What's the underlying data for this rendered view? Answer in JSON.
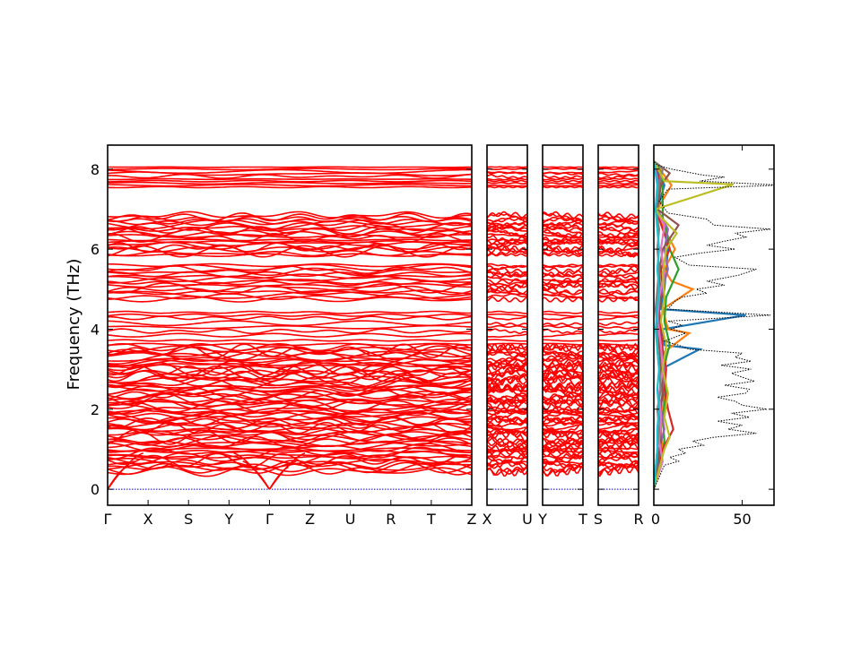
{
  "chart_data": {
    "type": "line",
    "ylabel": "Frequency (THz)",
    "ylim": [
      -0.4,
      8.6
    ],
    "yticks": [
      0,
      2,
      4,
      6,
      8
    ],
    "band_color": "#ff0000",
    "zero_line_color": "#0000cc",
    "panels": [
      {
        "kind": "band",
        "segments": [
          {
            "from": "Γ",
            "to": "X"
          },
          {
            "from": "X",
            "to": "S"
          },
          {
            "from": "S",
            "to": "Y"
          },
          {
            "from": "Y",
            "to": "Γ"
          },
          {
            "from": "Γ",
            "to": "Z"
          },
          {
            "from": "Z",
            "to": "U"
          },
          {
            "from": "U",
            "to": "R"
          },
          {
            "from": "R",
            "to": "T"
          },
          {
            "from": "T",
            "to": "Z"
          }
        ],
        "tick_labels": [
          "Γ",
          "X",
          "S",
          "Y",
          "Γ",
          "Z",
          "U",
          "R",
          "T",
          "Z"
        ]
      },
      {
        "kind": "band",
        "segments": [
          {
            "from": "X",
            "to": "U"
          }
        ],
        "tick_labels": [
          "X",
          "U"
        ]
      },
      {
        "kind": "band",
        "segments": [
          {
            "from": "Y",
            "to": "T"
          }
        ],
        "tick_labels": [
          "Y",
          "T"
        ]
      },
      {
        "kind": "band",
        "segments": [
          {
            "from": "S",
            "to": "R"
          }
        ],
        "tick_labels": [
          "S",
          "R"
        ]
      },
      {
        "kind": "dos",
        "xlim": [
          0,
          68
        ],
        "xticks": [
          0,
          50
        ],
        "tick_labels": [
          "0",
          "50"
        ],
        "total_dos_color": "#000000",
        "pdos_colors": [
          "#1f77b4",
          "#ff7f0e",
          "#2ca02c",
          "#d62728",
          "#9467bd",
          "#8c564b",
          "#e377c2",
          "#7f7f7f",
          "#bcbd22",
          "#17becf"
        ],
        "total_dos": [
          [
            0.0,
            0
          ],
          [
            0.3,
            3
          ],
          [
            0.6,
            6
          ],
          [
            0.7,
            14
          ],
          [
            0.8,
            9
          ],
          [
            0.9,
            18
          ],
          [
            1.0,
            14
          ],
          [
            1.1,
            28
          ],
          [
            1.2,
            22
          ],
          [
            1.3,
            34
          ],
          [
            1.4,
            58
          ],
          [
            1.5,
            42
          ],
          [
            1.6,
            50
          ],
          [
            1.7,
            36
          ],
          [
            1.8,
            54
          ],
          [
            1.9,
            44
          ],
          [
            2.0,
            64
          ],
          [
            2.1,
            50
          ],
          [
            2.2,
            46
          ],
          [
            2.3,
            36
          ],
          [
            2.4,
            52
          ],
          [
            2.5,
            54
          ],
          [
            2.6,
            40
          ],
          [
            2.7,
            57
          ],
          [
            2.8,
            50
          ],
          [
            2.9,
            44
          ],
          [
            3.0,
            55
          ],
          [
            3.1,
            38
          ],
          [
            3.2,
            55
          ],
          [
            3.3,
            46
          ],
          [
            3.4,
            50
          ],
          [
            3.5,
            20
          ],
          [
            3.6,
            14
          ],
          [
            3.7,
            6
          ],
          [
            3.8,
            12
          ],
          [
            3.9,
            18
          ],
          [
            4.0,
            10
          ],
          [
            4.1,
            16
          ],
          [
            4.2,
            8
          ],
          [
            4.35,
            66
          ],
          [
            4.5,
            8
          ],
          [
            4.7,
            12
          ],
          [
            4.8,
            16
          ],
          [
            4.9,
            30
          ],
          [
            5.0,
            24
          ],
          [
            5.1,
            40
          ],
          [
            5.2,
            30
          ],
          [
            5.35,
            48
          ],
          [
            5.5,
            58
          ],
          [
            5.6,
            20
          ],
          [
            5.8,
            12
          ],
          [
            5.9,
            26
          ],
          [
            6.0,
            46
          ],
          [
            6.1,
            30
          ],
          [
            6.2,
            40
          ],
          [
            6.3,
            52
          ],
          [
            6.4,
            46
          ],
          [
            6.5,
            66
          ],
          [
            6.6,
            34
          ],
          [
            6.75,
            30
          ],
          [
            6.9,
            8
          ],
          [
            7.2,
            3
          ],
          [
            7.5,
            8
          ],
          [
            7.6,
            72
          ],
          [
            7.7,
            26
          ],
          [
            7.8,
            40
          ],
          [
            7.85,
            28
          ],
          [
            8.0,
            10
          ],
          [
            8.1,
            2
          ],
          [
            8.2,
            0
          ]
        ],
        "pdos": [
          {
            "points": [
              [
                0.0,
                0
              ],
              [
                0.5,
                2
              ],
              [
                1.0,
                4
              ],
              [
                1.5,
                3
              ],
              [
                2.0,
                6
              ],
              [
                2.5,
                5
              ],
              [
                3.0,
                4
              ],
              [
                3.5,
                26
              ],
              [
                3.6,
                6
              ],
              [
                4.0,
                5
              ],
              [
                4.35,
                52
              ],
              [
                4.5,
                4
              ],
              [
                5.0,
                6
              ],
              [
                5.5,
                7
              ],
              [
                6.0,
                8
              ],
              [
                6.5,
                6
              ],
              [
                7.0,
                2
              ],
              [
                7.6,
                6
              ],
              [
                8.0,
                2
              ],
              [
                8.2,
                0
              ]
            ]
          },
          {
            "points": [
              [
                0.0,
                0
              ],
              [
                0.5,
                3
              ],
              [
                1.0,
                5
              ],
              [
                1.5,
                4
              ],
              [
                2.0,
                5
              ],
              [
                2.5,
                7
              ],
              [
                3.0,
                6
              ],
              [
                3.5,
                8
              ],
              [
                3.9,
                20
              ],
              [
                4.0,
                8
              ],
              [
                4.5,
                5
              ],
              [
                5.0,
                22
              ],
              [
                5.2,
                10
              ],
              [
                5.5,
                6
              ],
              [
                6.0,
                12
              ],
              [
                6.5,
                6
              ],
              [
                7.0,
                2
              ],
              [
                7.6,
                10
              ],
              [
                8.2,
                0
              ]
            ]
          },
          {
            "points": [
              [
                0.0,
                0
              ],
              [
                0.6,
                4
              ],
              [
                1.2,
                6
              ],
              [
                1.8,
                5
              ],
              [
                2.4,
                7
              ],
              [
                3.0,
                5
              ],
              [
                3.6,
                9
              ],
              [
                4.2,
                6
              ],
              [
                4.8,
                7
              ],
              [
                5.5,
                14
              ],
              [
                6.0,
                9
              ],
              [
                6.5,
                7
              ],
              [
                6.8,
                5
              ],
              [
                7.6,
                5
              ],
              [
                8.0,
                3
              ],
              [
                8.2,
                0
              ]
            ]
          },
          {
            "points": [
              [
                0.0,
                0
              ],
              [
                0.5,
                3
              ],
              [
                1.0,
                5
              ],
              [
                1.5,
                11
              ],
              [
                2.0,
                8
              ],
              [
                2.5,
                6
              ],
              [
                3.0,
                7
              ],
              [
                3.5,
                5
              ],
              [
                4.0,
                4
              ],
              [
                4.5,
                3
              ],
              [
                5.0,
                5
              ],
              [
                5.5,
                4
              ],
              [
                6.0,
                9
              ],
              [
                6.5,
                5
              ],
              [
                7.0,
                1
              ],
              [
                7.6,
                4
              ],
              [
                8.2,
                0
              ]
            ]
          },
          {
            "points": [
              [
                0.0,
                0
              ],
              [
                0.5,
                2
              ],
              [
                1.0,
                3
              ],
              [
                1.5,
                6
              ],
              [
                2.0,
                4
              ],
              [
                2.5,
                5
              ],
              [
                3.0,
                6
              ],
              [
                3.5,
                4
              ],
              [
                4.0,
                3
              ],
              [
                4.5,
                2
              ],
              [
                5.0,
                5
              ],
              [
                5.5,
                8
              ],
              [
                6.0,
                6
              ],
              [
                6.5,
                8
              ],
              [
                7.0,
                2
              ],
              [
                7.6,
                3
              ],
              [
                8.2,
                0
              ]
            ]
          },
          {
            "points": [
              [
                0.0,
                0
              ],
              [
                0.6,
                2
              ],
              [
                1.2,
                4
              ],
              [
                1.8,
                3
              ],
              [
                2.4,
                5
              ],
              [
                3.0,
                4
              ],
              [
                3.6,
                3
              ],
              [
                4.2,
                2
              ],
              [
                4.8,
                4
              ],
              [
                5.4,
                3
              ],
              [
                6.0,
                5
              ],
              [
                6.6,
                14
              ],
              [
                7.0,
                2
              ],
              [
                7.6,
                4
              ],
              [
                7.9,
                9
              ],
              [
                8.2,
                0
              ]
            ]
          },
          {
            "points": [
              [
                0.0,
                0
              ],
              [
                0.7,
                5
              ],
              [
                1.2,
                3
              ],
              [
                1.8,
                4
              ],
              [
                2.4,
                3
              ],
              [
                3.0,
                5
              ],
              [
                3.6,
                4
              ],
              [
                4.2,
                2
              ],
              [
                4.8,
                3
              ],
              [
                5.4,
                6
              ],
              [
                6.0,
                4
              ],
              [
                6.6,
                6
              ],
              [
                7.0,
                1
              ],
              [
                7.6,
                2
              ],
              [
                8.2,
                0
              ]
            ]
          },
          {
            "points": [
              [
                0.0,
                0
              ],
              [
                0.5,
                1
              ],
              [
                1.0,
                2
              ],
              [
                1.5,
                3
              ],
              [
                2.0,
                2
              ],
              [
                2.5,
                4
              ],
              [
                3.0,
                3
              ],
              [
                3.5,
                2
              ],
              [
                4.0,
                2
              ],
              [
                4.5,
                1
              ],
              [
                5.0,
                2
              ],
              [
                5.5,
                3
              ],
              [
                6.0,
                2
              ],
              [
                6.5,
                3
              ],
              [
                7.0,
                1
              ],
              [
                7.6,
                3
              ],
              [
                8.0,
                5
              ],
              [
                8.2,
                0
              ]
            ]
          },
          {
            "points": [
              [
                0.0,
                0
              ],
              [
                0.5,
                3
              ],
              [
                1.0,
                6
              ],
              [
                1.3,
                9
              ],
              [
                1.8,
                6
              ],
              [
                2.4,
                8
              ],
              [
                3.0,
                5
              ],
              [
                3.6,
                7
              ],
              [
                4.2,
                4
              ],
              [
                4.8,
                6
              ],
              [
                5.4,
                5
              ],
              [
                6.0,
                7
              ],
              [
                6.4,
                13
              ],
              [
                6.8,
                4
              ],
              [
                7.0,
                1
              ],
              [
                7.62,
                45
              ],
              [
                7.7,
                6
              ],
              [
                8.2,
                0
              ]
            ]
          },
          {
            "points": [
              [
                0.0,
                0
              ],
              [
                0.5,
                1
              ],
              [
                1.0,
                2
              ],
              [
                1.5,
                2
              ],
              [
                2.0,
                3
              ],
              [
                2.5,
                2
              ],
              [
                3.0,
                3
              ],
              [
                3.5,
                2
              ],
              [
                4.0,
                1
              ],
              [
                4.5,
                2
              ],
              [
                5.0,
                3
              ],
              [
                5.5,
                2
              ],
              [
                6.0,
                3
              ],
              [
                6.5,
                2
              ],
              [
                7.0,
                1
              ],
              [
                7.6,
                2
              ],
              [
                8.2,
                0
              ]
            ]
          }
        ]
      }
    ]
  }
}
